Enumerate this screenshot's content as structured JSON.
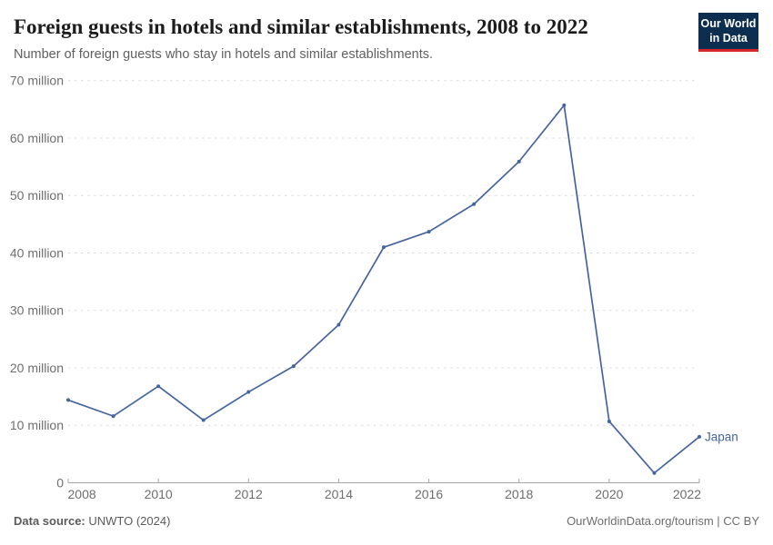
{
  "header": {
    "title": "Foreign guests in hotels and similar establishments, 2008 to 2022",
    "subtitle": "Number of foreign guests who stay in hotels and similar establishments.",
    "logo": {
      "line1": "Our World",
      "line2": "in Data"
    }
  },
  "chart_data": {
    "type": "line",
    "title": "Foreign guests in hotels and similar establishments, 2008 to 2022",
    "xlabel": "",
    "ylabel": "",
    "unit": "million",
    "x": [
      2008,
      2009,
      2010,
      2011,
      2012,
      2013,
      2014,
      2015,
      2016,
      2017,
      2018,
      2019,
      2020,
      2021,
      2022
    ],
    "series": [
      {
        "name": "Japan",
        "color": "#4464a0",
        "values_millions": [
          14.4,
          11.6,
          16.8,
          10.9,
          15.8,
          20.3,
          27.5,
          41.0,
          43.7,
          48.5,
          55.9,
          65.7,
          10.7,
          1.7,
          8.0
        ]
      }
    ],
    "xlim": [
      2008,
      2022
    ],
    "ylim_millions": [
      0,
      70
    ],
    "yticks": [
      {
        "value": 0,
        "label": "0"
      },
      {
        "value": 10,
        "label": "10 million"
      },
      {
        "value": 20,
        "label": "20 million"
      },
      {
        "value": 30,
        "label": "30 million"
      },
      {
        "value": 40,
        "label": "40 million"
      },
      {
        "value": 50,
        "label": "50 million"
      },
      {
        "value": 60,
        "label": "60 million"
      },
      {
        "value": 70,
        "label": "70 million"
      }
    ],
    "xticks": [
      2008,
      2010,
      2012,
      2014,
      2016,
      2018,
      2020,
      2022
    ],
    "grid": "horizontal-dashed",
    "legend_position": "end-of-line",
    "entity_label": "Japan"
  },
  "footer": {
    "datasource_label": "Data source:",
    "datasource_value": " UNWTO (2024)",
    "credit_link": "OurWorldinData.org/tourism",
    "credit_separator": " | ",
    "credit_license": "CC BY"
  },
  "colors": {
    "line": "#4464a0",
    "entity_label": "#4464a0",
    "grid": "#dcdcdc",
    "axis": "#a5a5a5",
    "tick_label": "#6e6e6e",
    "title": "#1c1c1c",
    "subtitle": "#606060",
    "logo_bg": "#0d2e4f",
    "logo_accent": "#d8252e",
    "background": "#ffffff"
  }
}
